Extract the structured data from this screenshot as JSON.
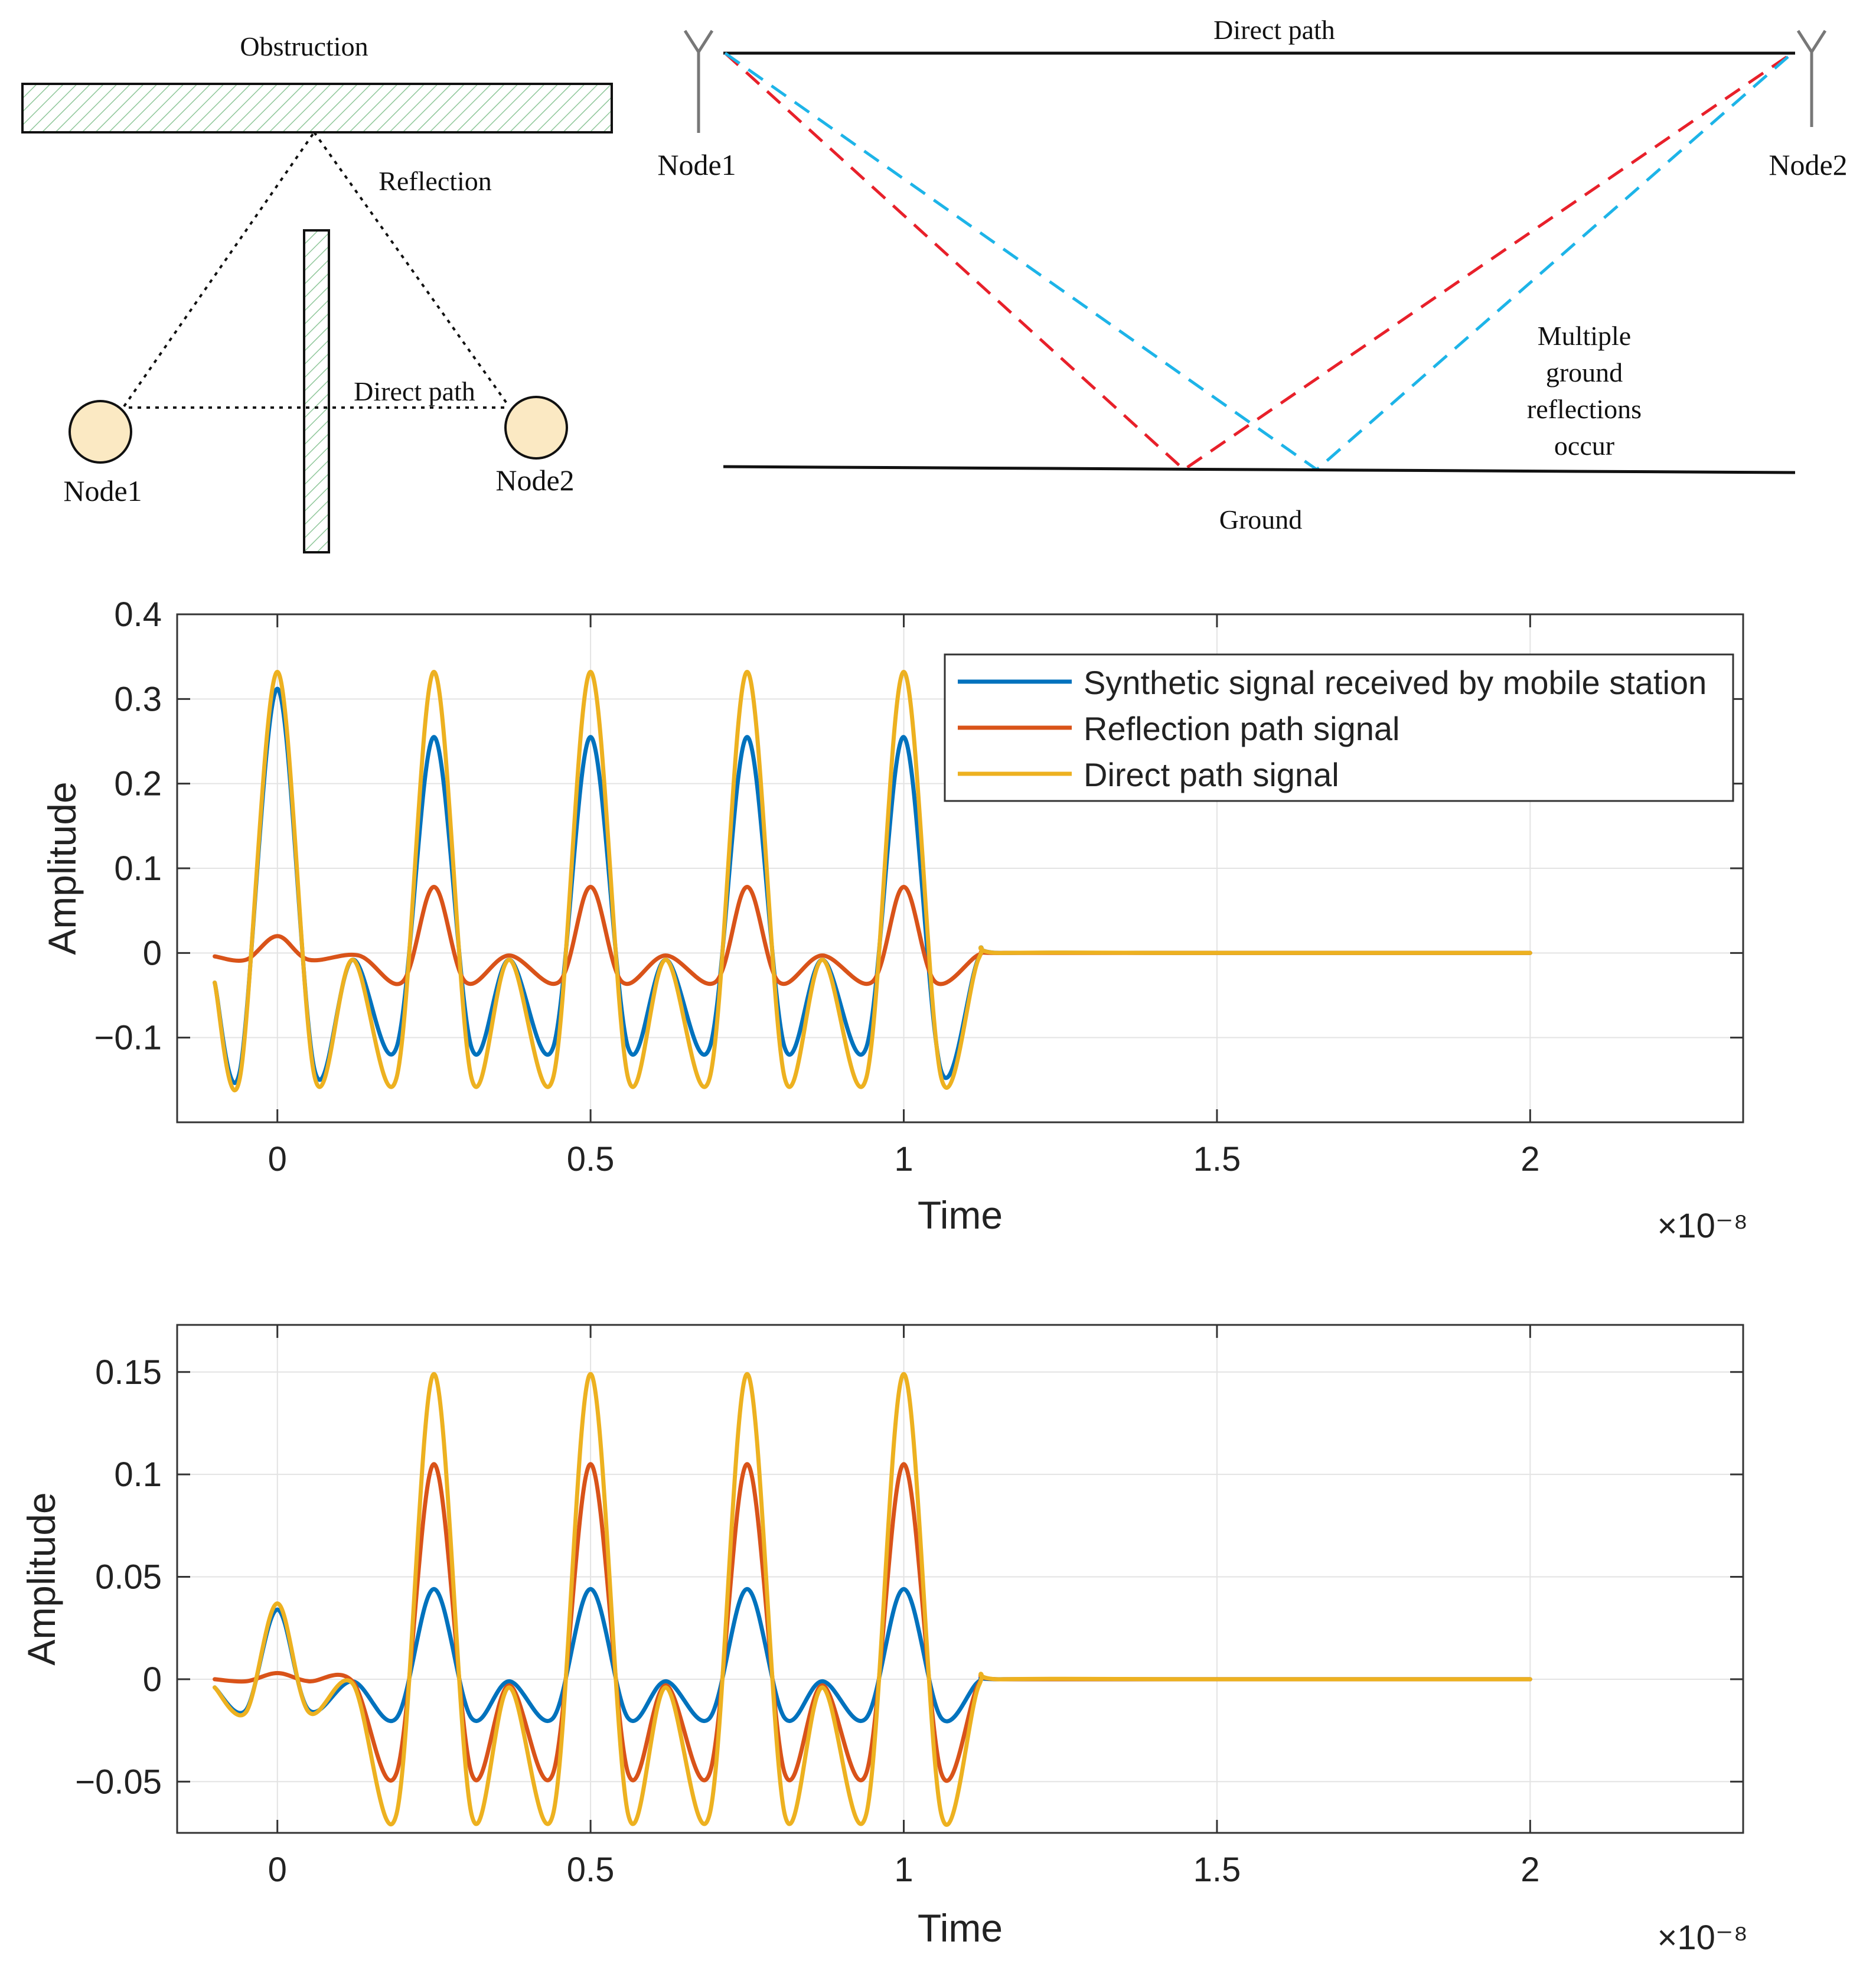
{
  "diagram_a": {
    "obstruction_label": "Obstruction",
    "reflection_label": "Reflection",
    "direct_path_label": "Direct path",
    "node1_label": "Node1",
    "node2_label": "Node2"
  },
  "diagram_b": {
    "direct_path_label": "Direct path",
    "node1_label": "Node1",
    "node2_label": "Node2",
    "multiple_reflections_lines": [
      "Multiple",
      "ground",
      "reflections",
      "occur"
    ],
    "ground_label": "Ground"
  },
  "colors": {
    "synthetic": "#0072BD",
    "reflection": "#D95319",
    "direct": "#EDB120",
    "hatch": "#8fc79a",
    "node_fill": "#fbe9c3",
    "red_dash": "#e8202a",
    "cyan_dash": "#1db4e8"
  },
  "chart_data": [
    {
      "type": "line",
      "title": "",
      "xlabel": "Time",
      "ylabel": "Amplitude",
      "x_exponent": "×10⁻⁸",
      "xlim": [
        -0.16,
        2.34
      ],
      "ylim": [
        -0.2,
        0.4
      ],
      "xticks": [
        0,
        0.5,
        1,
        1.5,
        2
      ],
      "xtick_labels": [
        "0",
        "0.5",
        "1",
        "1.5",
        "2"
      ],
      "yticks": [
        -0.1,
        0,
        0.1,
        0.2,
        0.3,
        0.4
      ],
      "ytick_labels": [
        "−0.1",
        "0",
        "0.1",
        "0.2",
        "0.3",
        "0.4"
      ],
      "grid": true,
      "legend_position": "top-right",
      "legend": [
        "Synthetic signal received by mobile station",
        "Reflection path signal",
        "Direct path signal"
      ],
      "series": [
        {
          "name": "Synthetic signal received by mobile station",
          "color_key": "synthetic",
          "x": [
            -0.1,
            -0.06,
            0,
            0.06,
            0.12,
            0.19,
            0.25,
            0.31,
            0.37,
            0.44,
            0.5,
            0.56,
            0.62,
            0.69,
            0.75,
            0.81,
            0.87,
            0.94,
            1.0,
            1.06,
            1.12,
            1.16,
            1.5,
            2.0
          ],
          "values": [
            -0.035,
            -0.14,
            0.312,
            -0.14,
            -0.008,
            -0.112,
            0.255,
            -0.112,
            -0.008,
            -0.112,
            0.255,
            -0.112,
            -0.008,
            -0.112,
            0.255,
            -0.112,
            -0.008,
            -0.112,
            0.255,
            -0.14,
            -0.005,
            0.0,
            0.0,
            0.0
          ]
        },
        {
          "name": "Reflection path signal",
          "color_key": "reflection",
          "x": [
            -0.1,
            -0.05,
            0,
            0.05,
            0.13,
            0.2,
            0.25,
            0.3,
            0.37,
            0.45,
            0.5,
            0.55,
            0.62,
            0.7,
            0.75,
            0.8,
            0.87,
            0.95,
            1.0,
            1.05,
            1.12,
            1.16,
            1.5,
            2.0
          ],
          "values": [
            -0.004,
            -0.008,
            0.02,
            -0.008,
            -0.003,
            -0.034,
            0.078,
            -0.034,
            -0.003,
            -0.034,
            0.078,
            -0.034,
            -0.003,
            -0.034,
            0.078,
            -0.034,
            -0.003,
            -0.034,
            0.078,
            -0.034,
            -0.002,
            0.0,
            0.0,
            0.0
          ]
        },
        {
          "name": "Direct path signal",
          "color_key": "direct",
          "x": [
            -0.1,
            -0.06,
            0,
            0.06,
            0.12,
            0.19,
            0.25,
            0.31,
            0.37,
            0.44,
            0.5,
            0.56,
            0.62,
            0.69,
            0.75,
            0.81,
            0.87,
            0.94,
            1.0,
            1.06,
            1.12,
            1.16,
            1.5,
            2.0
          ],
          "values": [
            -0.035,
            -0.148,
            0.332,
            -0.148,
            -0.008,
            -0.148,
            0.332,
            -0.148,
            -0.008,
            -0.148,
            0.332,
            -0.148,
            -0.008,
            -0.148,
            0.332,
            -0.148,
            -0.008,
            -0.148,
            0.332,
            -0.148,
            -0.006,
            0.0,
            0.0,
            0.0
          ]
        }
      ]
    },
    {
      "type": "line",
      "title": "",
      "xlabel": "Time",
      "ylabel": "Amplitude",
      "x_exponent": "×10⁻⁸",
      "xlim": [
        -0.16,
        2.34
      ],
      "ylim": [
        -0.075,
        0.173
      ],
      "xticks": [
        0,
        0.5,
        1,
        1.5,
        2
      ],
      "xtick_labels": [
        "0",
        "0.5",
        "1",
        "1.5",
        "2"
      ],
      "yticks": [
        -0.05,
        0,
        0.05,
        0.1,
        0.15
      ],
      "ytick_labels": [
        "−0.05",
        "0",
        "0.05",
        "0.1",
        "0.15"
      ],
      "grid": true,
      "legend_position": "none",
      "series": [
        {
          "name": "Synthetic signal received by mobile station",
          "color_key": "synthetic",
          "x": [
            -0.1,
            -0.05,
            0,
            0.05,
            0.12,
            0.19,
            0.25,
            0.31,
            0.37,
            0.44,
            0.5,
            0.56,
            0.62,
            0.69,
            0.75,
            0.81,
            0.87,
            0.94,
            1.0,
            1.06,
            1.12,
            1.16,
            1.5,
            2.0
          ],
          "values": [
            -0.004,
            -0.015,
            0.034,
            -0.015,
            -0.001,
            -0.019,
            0.044,
            -0.019,
            -0.001,
            -0.019,
            0.044,
            -0.019,
            -0.001,
            -0.019,
            0.044,
            -0.019,
            -0.001,
            -0.019,
            0.044,
            -0.019,
            -0.001,
            0.0,
            0.0,
            0.0
          ]
        },
        {
          "name": "Reflection path signal",
          "color_key": "reflection",
          "x": [
            -0.1,
            -0.05,
            0,
            0.05,
            0.12,
            0.19,
            0.25,
            0.31,
            0.37,
            0.44,
            0.5,
            0.56,
            0.62,
            0.69,
            0.75,
            0.81,
            0.87,
            0.94,
            1.0,
            1.06,
            1.12,
            1.16,
            1.5,
            2.0
          ],
          "values": [
            0.0,
            -0.001,
            0.003,
            -0.001,
            -0.001,
            -0.046,
            0.105,
            -0.046,
            -0.003,
            -0.046,
            0.105,
            -0.046,
            -0.003,
            -0.046,
            0.105,
            -0.046,
            -0.003,
            -0.046,
            0.105,
            -0.046,
            -0.002,
            0.0,
            0.0,
            0.0
          ]
        },
        {
          "name": "Direct path signal",
          "color_key": "direct",
          "x": [
            -0.1,
            -0.05,
            0,
            0.05,
            0.12,
            0.19,
            0.25,
            0.31,
            0.37,
            0.44,
            0.5,
            0.56,
            0.62,
            0.69,
            0.75,
            0.81,
            0.87,
            0.94,
            1.0,
            1.06,
            1.12,
            1.16,
            1.5,
            2.0
          ],
          "values": [
            -0.004,
            -0.016,
            0.037,
            -0.016,
            -0.002,
            -0.066,
            0.149,
            -0.066,
            -0.004,
            -0.066,
            0.149,
            -0.066,
            -0.004,
            -0.066,
            0.149,
            -0.066,
            -0.004,
            -0.066,
            0.149,
            -0.066,
            -0.003,
            0.0,
            0.0,
            0.0
          ]
        }
      ]
    }
  ]
}
